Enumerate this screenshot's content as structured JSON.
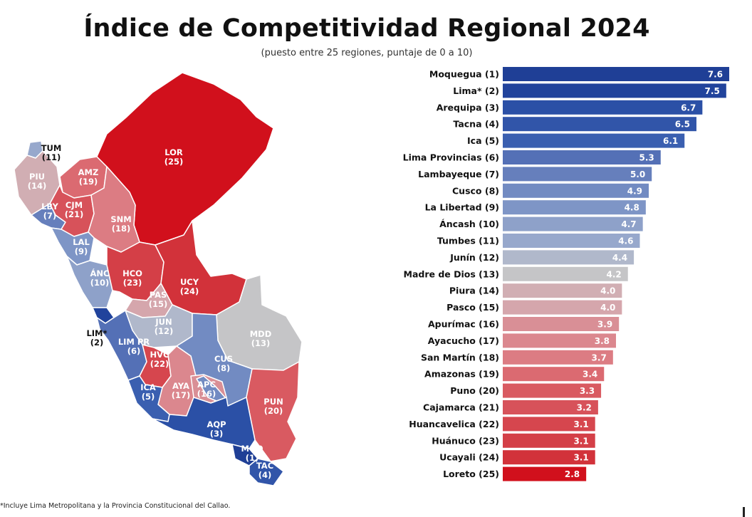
{
  "title": "Índice de Competitividad Regional 2024",
  "subtitle": "(puesto entre 25 regiones, puntaje de 0 a 10)",
  "footnote": "*Incluye Lima Metropolitana y la Provincia Constitucional del Callao.",
  "colors": {
    "rank_1": "#1f3f96",
    "rank_2": "#21439c",
    "rank_3": "#2b50a6",
    "rank_4": "#3155a9",
    "rank_5": "#3a5fb0",
    "rank_6": "#5470b6",
    "rank_7": "#667fbc",
    "rank_8": "#728bc2",
    "rank_9": "#7e95c6",
    "rank_10": "#8ea1c9",
    "rank_11": "#97a8cc",
    "rank_12": "#b0b8cb",
    "rank_13": "#c5c5c7",
    "rank_14": "#d1aeb3",
    "rank_15": "#d5a6ac",
    "rank_16": "#d98f96",
    "rank_17": "#db878e",
    "rank_18": "#dc7c83",
    "rank_19": "#db6a71",
    "rank_20": "#d95a61",
    "rank_21": "#d7525a",
    "rank_22": "#d6464e",
    "rank_23": "#d43f47",
    "rank_24": "#d2323a",
    "rank_25": "#d1101c",
    "bar_label": "#ffffff",
    "map_outline": "#ffffff"
  },
  "chart_data": {
    "type": "bar",
    "orientation": "horizontal",
    "categories": [
      "Moquegua (1)",
      "Lima* (2)",
      "Arequipa (3)",
      "Tacna (4)",
      "Ica (5)",
      "Lima Provincias (6)",
      "Lambayeque (7)",
      "Cusco (8)",
      "La Libertad (9)",
      "Áncash (10)",
      "Tumbes (11)",
      "Junín (12)",
      "Madre de Dios (13)",
      "Piura (14)",
      "Pasco (15)",
      "Apurímac (16)",
      "Ayacucho (17)",
      "San Martín (18)",
      "Amazonas (19)",
      "Puno (20)",
      "Cajamarca (21)",
      "Huancavelica (22)",
      "Huánuco (23)",
      "Ucayali (24)",
      "Loreto (25)"
    ],
    "values": [
      7.6,
      7.5,
      6.7,
      6.5,
      6.1,
      5.3,
      5.0,
      4.9,
      4.8,
      4.7,
      4.6,
      4.4,
      4.2,
      4.0,
      4.0,
      3.9,
      3.8,
      3.7,
      3.4,
      3.3,
      3.2,
      3.1,
      3.1,
      3.1,
      2.8
    ],
    "value_labels": [
      "7.6",
      "7.5",
      "6.7",
      "6.5",
      "6.1",
      "5.3",
      "5.0",
      "4.9",
      "4.8",
      "4.7",
      "4.6",
      "4.4",
      "4.2",
      "4.0",
      "4.0",
      "3.9",
      "3.8",
      "3.7",
      "3.4",
      "3.3",
      "3.2",
      "3.1",
      "3.1",
      "3.1",
      "2.8"
    ],
    "xlim": [
      0,
      7.6
    ],
    "grid": false,
    "legend": "none"
  },
  "map": {
    "regions": [
      {
        "code": "TUM",
        "rank": "(11)",
        "label_color": "#111111"
      },
      {
        "code": "PIU",
        "rank": "(14)",
        "label_color": "#ffffff"
      },
      {
        "code": "LBY",
        "rank": "(7)",
        "label_color": "#ffffff"
      },
      {
        "code": "AMZ",
        "rank": "(19)",
        "label_color": "#ffffff"
      },
      {
        "code": "CJM",
        "rank": "(21)",
        "label_color": "#ffffff"
      },
      {
        "code": "LOR",
        "rank": "(25)",
        "label_color": "#ffffff"
      },
      {
        "code": "SNM",
        "rank": "(18)",
        "label_color": "#ffffff"
      },
      {
        "code": "LAL",
        "rank": "(9)",
        "label_color": "#ffffff"
      },
      {
        "code": "ÁNC",
        "rank": "(10)",
        "label_color": "#ffffff"
      },
      {
        "code": "HCO",
        "rank": "(23)",
        "label_color": "#ffffff"
      },
      {
        "code": "UCY",
        "rank": "(24)",
        "label_color": "#ffffff"
      },
      {
        "code": "PAS",
        "rank": "(15)",
        "label_color": "#ffffff"
      },
      {
        "code": "JUN",
        "rank": "(12)",
        "label_color": "#ffffff"
      },
      {
        "code": "LIM*",
        "rank": "(2)",
        "label_color": "#111111"
      },
      {
        "code": "LIM PR",
        "rank": "(6)",
        "label_color": "#ffffff"
      },
      {
        "code": "MDD",
        "rank": "(13)",
        "label_color": "#ffffff"
      },
      {
        "code": "HVC",
        "rank": "(22)",
        "label_color": "#ffffff"
      },
      {
        "code": "CUS",
        "rank": "(8)",
        "label_color": "#ffffff"
      },
      {
        "code": "AYA",
        "rank": "(17)",
        "label_color": "#ffffff"
      },
      {
        "code": "APC",
        "rank": "(16)",
        "label_color": "#ffffff"
      },
      {
        "code": "ICA",
        "rank": "(5)",
        "label_color": "#ffffff"
      },
      {
        "code": "PUN",
        "rank": "(20)",
        "label_color": "#ffffff"
      },
      {
        "code": "AQP",
        "rank": "(3)",
        "label_color": "#ffffff"
      },
      {
        "code": "MOQ",
        "rank": "(1)",
        "label_color": "#ffffff"
      },
      {
        "code": "TAC",
        "rank": "(4)",
        "label_color": "#ffffff"
      }
    ]
  }
}
